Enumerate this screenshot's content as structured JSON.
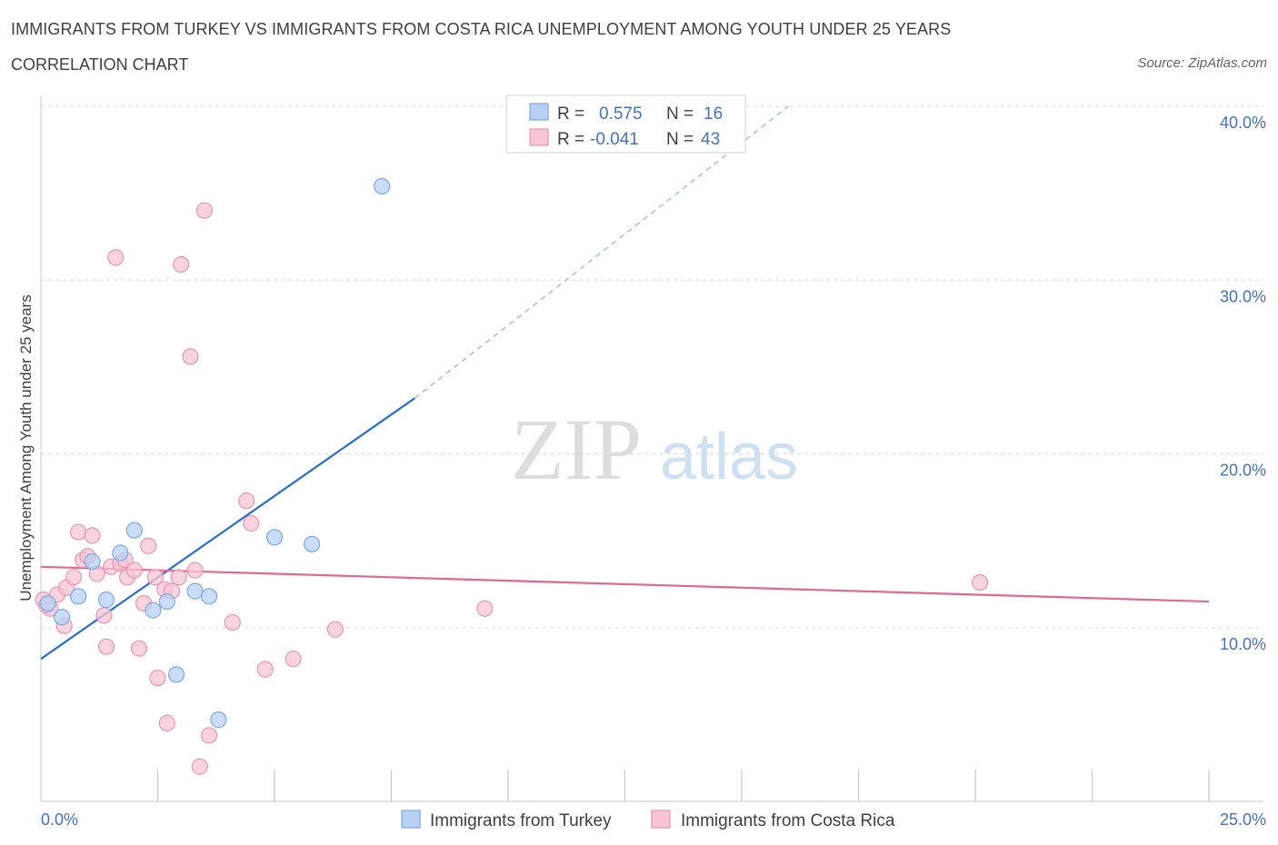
{
  "title": "IMMIGRANTS FROM TURKEY VS IMMIGRANTS FROM COSTA RICA UNEMPLOYMENT AMONG YOUTH UNDER 25 YEARS",
  "subtitle": "CORRELATION CHART",
  "source": "Source: ZipAtlas.com",
  "watermark": {
    "zip": "ZIP",
    "atlas": "atlas"
  },
  "colors": {
    "turkey_fill": "#b7d1f5",
    "turkey_stroke": "#7fa8e0",
    "turkey_line": "#2a6dcc",
    "costa_fill": "#f7c5d4",
    "costa_stroke": "#e995b2",
    "costa_line": "#e06892",
    "axis_text": "#4472c4",
    "grid": "#d9d9d9"
  },
  "legend": {
    "rows": [
      {
        "r_label": "R =",
        "r_value": "0.575",
        "n_label": "N =",
        "n_value": "16"
      },
      {
        "r_label": "R =",
        "r_value": "-0.041",
        "n_label": "N =",
        "n_value": "43"
      }
    ]
  },
  "chart_data": {
    "type": "scatter",
    "title": "IMMIGRANTS FROM TURKEY VS IMMIGRANTS FROM COSTA RICA UNEMPLOYMENT AMONG YOUTH UNDER 25 YEARS",
    "xlabel": "",
    "ylabel": "Unemployment Among Youth under 25 years",
    "xlim": [
      0,
      25
    ],
    "ylim": [
      0,
      40
    ],
    "x_tick_labels": [
      {
        "value": 0,
        "label": "0.0%"
      },
      {
        "value": 25,
        "label": "25.0%"
      }
    ],
    "y_tick_labels": [
      {
        "value": 10,
        "label": "10.0%"
      },
      {
        "value": 20,
        "label": "20.0%"
      },
      {
        "value": 30,
        "label": "30.0%"
      },
      {
        "value": 40,
        "label": "40.0%"
      }
    ],
    "x_minor_ticks": [
      2.5,
      5.0,
      7.5,
      10.0,
      12.5,
      15.0,
      17.5,
      20.0,
      22.5,
      25.0
    ],
    "series": [
      {
        "name": "Immigrants from Turkey",
        "r": 0.575,
        "n": 16,
        "trend": {
          "x0": 0,
          "y0": 8.2,
          "x1": 8.0,
          "y1": 23.2,
          "x_dash_end": 16.0,
          "y_dash_end": 40.0
        },
        "points": [
          {
            "x": 0.15,
            "y": 11.4
          },
          {
            "x": 0.45,
            "y": 10.6
          },
          {
            "x": 0.8,
            "y": 11.8
          },
          {
            "x": 1.1,
            "y": 13.8
          },
          {
            "x": 1.4,
            "y": 11.6
          },
          {
            "x": 1.7,
            "y": 14.3
          },
          {
            "x": 2.0,
            "y": 15.6
          },
          {
            "x": 2.4,
            "y": 11.0
          },
          {
            "x": 2.7,
            "y": 11.5
          },
          {
            "x": 2.9,
            "y": 7.3
          },
          {
            "x": 3.3,
            "y": 12.1
          },
          {
            "x": 3.6,
            "y": 11.8
          },
          {
            "x": 3.8,
            "y": 4.7
          },
          {
            "x": 5.0,
            "y": 15.2
          },
          {
            "x": 5.8,
            "y": 14.8
          },
          {
            "x": 7.3,
            "y": 35.4
          }
        ]
      },
      {
        "name": "Immigrants from Costa Rica",
        "r": -0.041,
        "n": 43,
        "trend": {
          "x0": 0,
          "y0": 13.5,
          "x1": 25.0,
          "y1": 11.5
        },
        "points": [
          {
            "x": 0.05,
            "y": 11.6
          },
          {
            "x": 0.2,
            "y": 11.1
          },
          {
            "x": 0.35,
            "y": 11.9
          },
          {
            "x": 0.5,
            "y": 10.1
          },
          {
            "x": 0.55,
            "y": 12.3
          },
          {
            "x": 0.7,
            "y": 12.9
          },
          {
            "x": 0.8,
            "y": 15.5
          },
          {
            "x": 0.9,
            "y": 13.9
          },
          {
            "x": 1.0,
            "y": 14.1
          },
          {
            "x": 1.1,
            "y": 15.3
          },
          {
            "x": 1.2,
            "y": 13.1
          },
          {
            "x": 1.35,
            "y": 10.7
          },
          {
            "x": 1.4,
            "y": 8.9
          },
          {
            "x": 1.5,
            "y": 13.5
          },
          {
            "x": 1.6,
            "y": 31.3
          },
          {
            "x": 1.7,
            "y": 13.7
          },
          {
            "x": 1.8,
            "y": 13.9
          },
          {
            "x": 1.85,
            "y": 12.9
          },
          {
            "x": 2.0,
            "y": 13.3
          },
          {
            "x": 2.1,
            "y": 8.8
          },
          {
            "x": 2.2,
            "y": 11.4
          },
          {
            "x": 2.3,
            "y": 14.7
          },
          {
            "x": 2.45,
            "y": 12.9
          },
          {
            "x": 2.5,
            "y": 7.1
          },
          {
            "x": 2.65,
            "y": 12.2
          },
          {
            "x": 2.7,
            "y": 4.5
          },
          {
            "x": 2.8,
            "y": 12.1
          },
          {
            "x": 2.95,
            "y": 12.9
          },
          {
            "x": 3.0,
            "y": 30.9
          },
          {
            "x": 3.2,
            "y": 25.6
          },
          {
            "x": 3.3,
            "y": 13.3
          },
          {
            "x": 3.4,
            "y": 2.0
          },
          {
            "x": 3.5,
            "y": 34.0
          },
          {
            "x": 3.6,
            "y": 3.8
          },
          {
            "x": 4.1,
            "y": 10.3
          },
          {
            "x": 4.4,
            "y": 17.3
          },
          {
            "x": 4.5,
            "y": 16.0
          },
          {
            "x": 4.8,
            "y": 7.6
          },
          {
            "x": 5.4,
            "y": 8.2
          },
          {
            "x": 6.3,
            "y": 9.9
          },
          {
            "x": 9.5,
            "y": 11.1
          },
          {
            "x": 20.1,
            "y": 12.6
          },
          {
            "x": 0.12,
            "y": 11.3
          }
        ]
      }
    ]
  },
  "bottom_legend": [
    {
      "label": "Immigrants from Turkey"
    },
    {
      "label": "Immigrants from Costa Rica"
    }
  ]
}
